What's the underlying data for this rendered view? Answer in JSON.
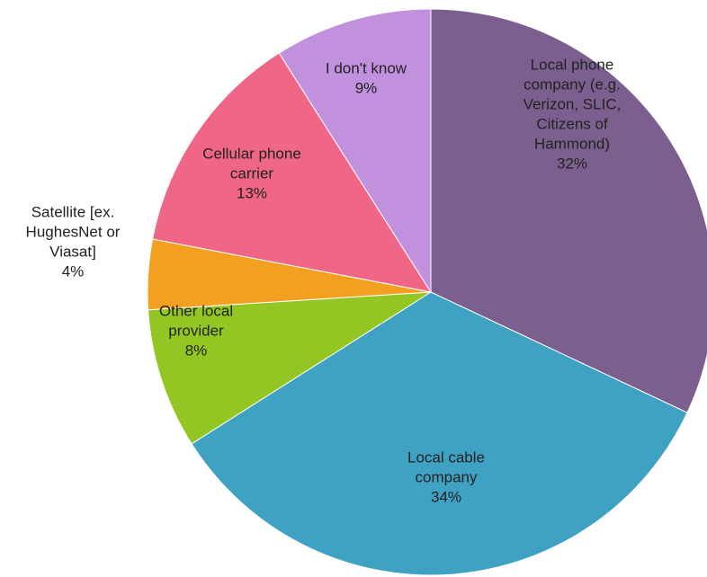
{
  "chart_data": {
    "type": "pie",
    "slices": [
      {
        "label_lines": [
          "Local phone",
          "company (e.g.",
          "Verizon, SLIC,",
          "Citizens of",
          "Hammond)"
        ],
        "pct_label": "32%",
        "value": 32,
        "color": "#7b5f8f"
      },
      {
        "label_lines": [
          "Local cable",
          "company"
        ],
        "pct_label": "34%",
        "value": 34,
        "color": "#3fa2c2"
      },
      {
        "label_lines": [
          "Other local",
          "provider"
        ],
        "pct_label": "8%",
        "value": 8,
        "color": "#93c623"
      },
      {
        "label_lines": [
          "Satellite [ex.",
          "HughesNet or",
          "Viasat]"
        ],
        "pct_label": "4%",
        "value": 4,
        "color": "#f3a020"
      },
      {
        "label_lines": [
          "Cellular phone",
          "carrier"
        ],
        "pct_label": "13%",
        "value": 13,
        "color": "#f06686"
      },
      {
        "label_lines": [
          "I don't know"
        ],
        "pct_label": "9%",
        "value": 9,
        "color": "#c291dd"
      }
    ]
  }
}
